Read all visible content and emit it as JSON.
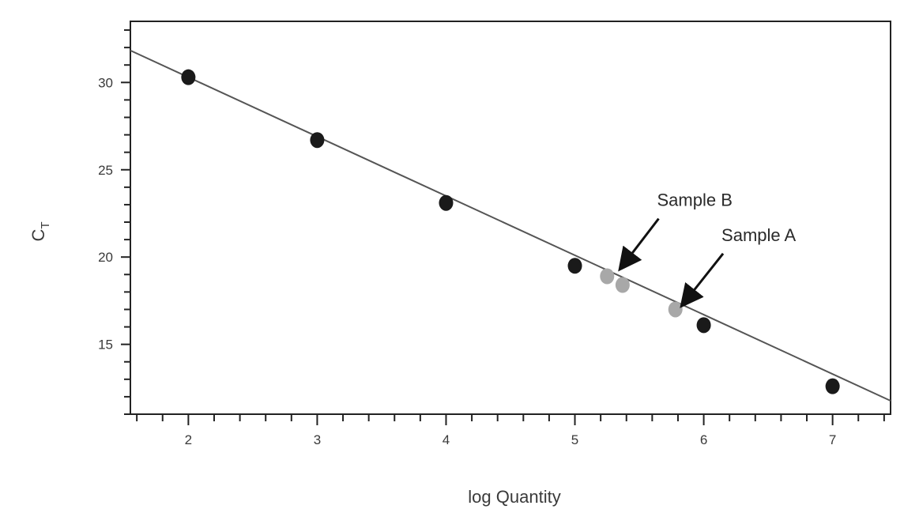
{
  "chart_data": {
    "type": "scatter",
    "title": "",
    "xlabel": "log Quantity",
    "ylabel_main": "C",
    "ylabel_sub": "T",
    "xlim": [
      1.55,
      7.45
    ],
    "ylim": [
      11.0,
      33.5
    ],
    "xticks": [
      "2",
      "3",
      "4",
      "5",
      "6",
      "7"
    ],
    "yticks": [
      "15",
      "20",
      "25",
      "30"
    ],
    "grid": false,
    "fit_line": {
      "slope": -3.4,
      "intercept": 37.1
    },
    "series": [
      {
        "color": "#1a1a1a",
        "points": [
          {
            "x": 2.0,
            "y": 30.3
          },
          {
            "x": 3.0,
            "y": 26.7
          },
          {
            "x": 4.0,
            "y": 23.1
          },
          {
            "x": 5.0,
            "y": 19.5
          },
          {
            "x": 6.0,
            "y": 16.1
          },
          {
            "x": 7.0,
            "y": 12.6
          }
        ]
      },
      {
        "color": "#a8a8a8",
        "points": [
          {
            "x": 5.25,
            "y": 18.9
          },
          {
            "x": 5.37,
            "y": 18.4
          },
          {
            "x": 5.78,
            "y": 17.0
          }
        ]
      }
    ],
    "annotations": [
      {
        "text": "Sample B",
        "target": {
          "x": 5.38,
          "y": 19.6
        },
        "from": {
          "x": 5.65,
          "y": 22.2
        }
      },
      {
        "text": "Sample A",
        "target": {
          "x": 5.86,
          "y": 17.5
        },
        "from": {
          "x": 6.15,
          "y": 20.2
        }
      }
    ]
  }
}
